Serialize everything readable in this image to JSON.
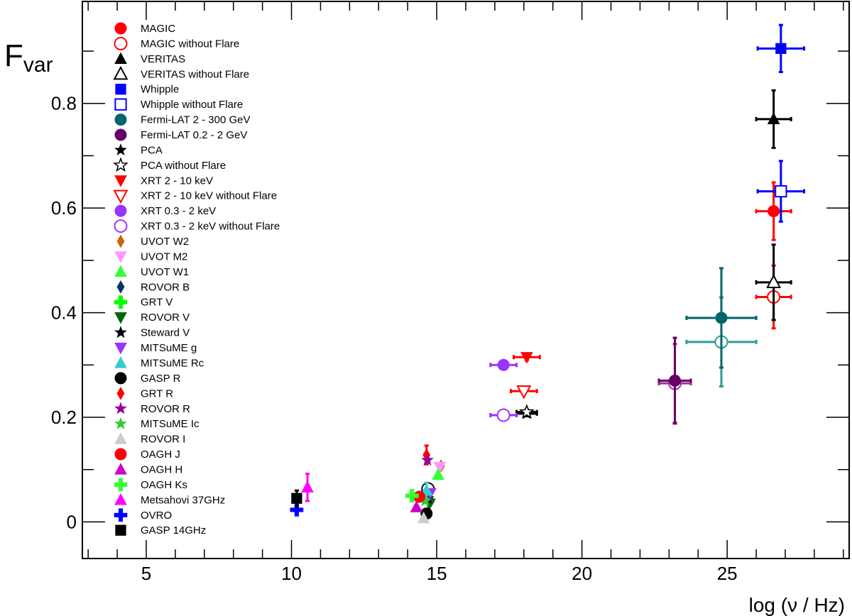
{
  "chart_data": {
    "type": "scatter",
    "title": "",
    "xlabel": "log (ν / Hz)",
    "ylabel_main": "F",
    "ylabel_sub": "var",
    "xlim": [
      2.8,
      29.2
    ],
    "ylim": [
      -0.07,
      0.995
    ],
    "xticks": [
      5,
      10,
      15,
      20,
      25
    ],
    "xtick_labels": [
      "5",
      "10",
      "15",
      "20",
      "25"
    ],
    "yticks": [
      0,
      0.2,
      0.4,
      0.6,
      0.8
    ],
    "ytick_labels": [
      "0",
      "0.2",
      "0.4",
      "0.6",
      "0.8"
    ],
    "legend_position": "top-left",
    "series": [
      {
        "name": "MAGIC",
        "marker": "circle",
        "filled": true,
        "color": "#ff0000",
        "points": [
          {
            "x": 26.6,
            "y": 0.594,
            "xerr": 0.6,
            "yerr": 0.055
          }
        ]
      },
      {
        "name": "MAGIC without Flare",
        "marker": "circle",
        "filled": false,
        "color": "#ff0000",
        "points": [
          {
            "x": 26.6,
            "y": 0.43,
            "xerr": 0.6,
            "yerr": 0.06
          }
        ]
      },
      {
        "name": "VERITAS",
        "marker": "triangle-up",
        "filled": true,
        "color": "#000000",
        "points": [
          {
            "x": 26.6,
            "y": 0.77,
            "xerr": 0.6,
            "yerr": 0.055
          }
        ]
      },
      {
        "name": "VERITAS without Flare",
        "marker": "triangle-up",
        "filled": false,
        "color": "#000000",
        "points": [
          {
            "x": 26.6,
            "y": 0.458,
            "xerr": 0.6,
            "yerr": 0.072
          }
        ]
      },
      {
        "name": "Whipple",
        "marker": "square",
        "filled": true,
        "color": "#0000ff",
        "points": [
          {
            "x": 26.85,
            "y": 0.905,
            "xerr": 0.8,
            "yerr": 0.045
          }
        ]
      },
      {
        "name": "Whipple without Flare",
        "marker": "square",
        "filled": false,
        "color": "#0000ff",
        "points": [
          {
            "x": 26.85,
            "y": 0.632,
            "xerr": 0.8,
            "yerr": 0.058
          }
        ]
      },
      {
        "name": "Fermi-LAT 2 - 300 GeV",
        "marker": "circle",
        "filled": true,
        "color": "#00666a",
        "points": [
          {
            "x": 24.8,
            "y": 0.39,
            "xerr": 1.2,
            "yerr": 0.095
          }
        ]
      },
      {
        "name": "Fermi-LAT 0.2 - 2 GeV",
        "marker": "circle",
        "filled": true,
        "color": "#660066",
        "points": [
          {
            "x": 23.2,
            "y": 0.27,
            "xerr": 0.55,
            "yerr": 0.082
          }
        ]
      },
      {
        "name": "PCA",
        "marker": "star",
        "filled": true,
        "color": "#000000",
        "points": [
          {
            "x": 18.1,
            "y": 0.207,
            "xerr": 0.35,
            "yerr": 0.005
          }
        ]
      },
      {
        "name": "PCA without Flare",
        "marker": "star",
        "filled": false,
        "color": "#000000",
        "points": [
          {
            "x": 18.1,
            "y": 0.21,
            "xerr": 0.35,
            "yerr": 0.005
          }
        ]
      },
      {
        "name": "XRT 2 - 10 keV",
        "marker": "triangle-down",
        "filled": true,
        "color": "#ff0000",
        "points": [
          {
            "x": 18.1,
            "y": 0.315,
            "xerr": 0.45,
            "yerr": 0.006
          }
        ]
      },
      {
        "name": "XRT 2 - 10 keV without Flare",
        "marker": "triangle-down",
        "filled": false,
        "color": "#ff0000",
        "points": [
          {
            "x": 18.0,
            "y": 0.25,
            "xerr": 0.45,
            "yerr": 0.006
          }
        ]
      },
      {
        "name": "XRT 0.3 - 2 keV",
        "marker": "circle",
        "filled": true,
        "color": "#9933ff",
        "points": [
          {
            "x": 17.3,
            "y": 0.3,
            "xerr": 0.45,
            "yerr": 0.005
          }
        ]
      },
      {
        "name": "XRT 0.3 - 2 keV without Flare",
        "marker": "circle",
        "filled": false,
        "color": "#9933ff",
        "points": [
          {
            "x": 17.3,
            "y": 0.204,
            "xerr": 0.45,
            "yerr": 0.005
          }
        ]
      },
      {
        "name": "UVOT W2",
        "marker": "diamond",
        "filled": true,
        "color": "#cc6600",
        "points": [
          {
            "x": 15.15,
            "y": 0.107,
            "xerr": 0,
            "yerr": 0.004
          }
        ]
      },
      {
        "name": "UVOT M2",
        "marker": "triangle-down",
        "filled": true,
        "color": "#ff99ff",
        "points": [
          {
            "x": 15.1,
            "y": 0.105,
            "xerr": 0,
            "yerr": 0.004
          }
        ]
      },
      {
        "name": "UVOT W1",
        "marker": "triangle-up",
        "filled": true,
        "color": "#33ff33",
        "points": [
          {
            "x": 15.05,
            "y": 0.09,
            "xerr": 0,
            "yerr": 0.004
          }
        ]
      },
      {
        "name": "ROVOR B",
        "marker": "diamond",
        "filled": true,
        "color": "#003366",
        "points": [
          {
            "x": 14.8,
            "y": 0.04,
            "xerr": 0,
            "yerr": 0.004
          }
        ]
      },
      {
        "name": "GRT V",
        "marker": "cross",
        "filled": true,
        "color": "#00ff00",
        "points": [
          {
            "x": 14.15,
            "y": 0.05,
            "xerr": 0,
            "yerr": 0.004
          }
        ]
      },
      {
        "name": "ROVOR V",
        "marker": "triangle-down",
        "filled": true,
        "color": "#006600",
        "points": [
          {
            "x": 14.75,
            "y": 0.035,
            "xerr": 0,
            "yerr": 0.004
          }
        ]
      },
      {
        "name": "Steward V",
        "marker": "star",
        "filled": true,
        "color": "#000000",
        "points": [
          {
            "x": 14.7,
            "y": 0.045,
            "xerr": 0,
            "yerr": 0.004
          }
        ]
      },
      {
        "name": "MITSuME g",
        "marker": "triangle-down",
        "filled": true,
        "color": "#9933ff",
        "points": [
          {
            "x": 14.78,
            "y": 0.055,
            "xerr": 0,
            "yerr": 0.004
          }
        ]
      },
      {
        "name": "MITSuME Rc",
        "marker": "triangle-up",
        "filled": true,
        "color": "#33cccc",
        "points": [
          {
            "x": 14.65,
            "y": 0.06,
            "xerr": 0,
            "yerr": 0.015
          }
        ]
      },
      {
        "name": "GASP R",
        "marker": "circle",
        "filled": true,
        "color": "#000000",
        "points": [
          {
            "x": 14.65,
            "y": 0.016,
            "xerr": 0,
            "yerr": 0.004
          }
        ]
      },
      {
        "name": "GRT R",
        "marker": "diamond",
        "filled": true,
        "color": "#ff0000",
        "points": [
          {
            "x": 14.65,
            "y": 0.128,
            "xerr": 0,
            "yerr": 0.018
          }
        ]
      },
      {
        "name": "ROVOR R",
        "marker": "star",
        "filled": true,
        "color": "#990099",
        "points": [
          {
            "x": 14.68,
            "y": 0.118,
            "xerr": 0,
            "yerr": 0.004
          }
        ]
      },
      {
        "name": "MITSuME Ic",
        "marker": "star",
        "filled": true,
        "color": "#33cc33",
        "points": [
          {
            "x": 14.6,
            "y": 0.04,
            "xerr": 0,
            "yerr": 0.004
          }
        ]
      },
      {
        "name": "ROVOR I",
        "marker": "triangle-up",
        "filled": true,
        "color": "#cccccc",
        "points": [
          {
            "x": 14.55,
            "y": 0.007,
            "xerr": 0,
            "yerr": 0.004
          }
        ]
      },
      {
        "name": "OAGH J",
        "marker": "circle",
        "filled": true,
        "color": "#ff0000",
        "points": [
          {
            "x": 14.4,
            "y": 0.048,
            "xerr": 0,
            "yerr": 0.004
          }
        ]
      },
      {
        "name": "OAGH H",
        "marker": "triangle-up",
        "filled": true,
        "color": "#cc00cc",
        "points": [
          {
            "x": 14.3,
            "y": 0.028,
            "xerr": 0,
            "yerr": 0.004
          }
        ]
      },
      {
        "name": "OAGH Ks",
        "marker": "cross",
        "filled": true,
        "color": "#33ff33",
        "points": [
          {
            "x": 14.15,
            "y": 0.05,
            "xerr": 0,
            "yerr": 0.004
          }
        ]
      },
      {
        "name": "Metsahovi 37GHz",
        "marker": "triangle-up",
        "filled": true,
        "color": "#ff00ff",
        "points": [
          {
            "x": 10.55,
            "y": 0.066,
            "xerr": 0,
            "yerr": 0.026
          }
        ]
      },
      {
        "name": "OVRO",
        "marker": "cross",
        "filled": true,
        "color": "#0000ff",
        "points": [
          {
            "x": 10.18,
            "y": 0.023,
            "xerr": 0,
            "yerr": 0.004
          }
        ]
      },
      {
        "name": "GASP 14GHz",
        "marker": "square",
        "filled": true,
        "color": "#000000",
        "points": [
          {
            "x": 10.18,
            "y": 0.045,
            "xerr": 0,
            "yerr": 0.015
          }
        ]
      }
    ],
    "extra_points": [
      {
        "series": "Fermi-LAT 2 - 300 GeV without Flare",
        "marker": "circle",
        "filled": false,
        "color": "#339999",
        "x": 24.8,
        "y": 0.344,
        "xerr": 1.2,
        "yerr": 0.085
      },
      {
        "series": "Fermi-LAT 0.2 - 2 GeV without Flare",
        "marker": "circle",
        "filled": false,
        "color": "#993399",
        "x": 23.2,
        "y": 0.265,
        "xerr": 0.55,
        "yerr": 0.075
      },
      {
        "series": "GASP R without Flare",
        "marker": "circle",
        "filled": false,
        "color": "#000000",
        "x": 14.7,
        "y": 0.063,
        "xerr": 0,
        "yerr": 0.004
      }
    ]
  }
}
